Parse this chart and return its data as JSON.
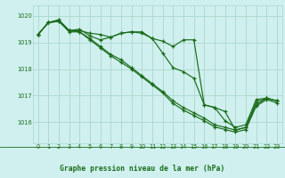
{
  "title": "Graphe pression niveau de la mer (hPa)",
  "bg_color": "#cff0ee",
  "line_color": "#1a6b1a",
  "grid_color": "#aad8cc",
  "title_color": "#1a6b1a",
  "xlim": [
    -0.5,
    23.5
  ],
  "ylim": [
    1015.2,
    1020.4
  ],
  "yticks": [
    1016,
    1017,
    1018,
    1019,
    1020
  ],
  "xticks": [
    0,
    1,
    2,
    3,
    4,
    5,
    6,
    7,
    8,
    9,
    10,
    11,
    12,
    13,
    14,
    15,
    16,
    17,
    18,
    19,
    20,
    21,
    22,
    23
  ],
  "series": [
    [
      1019.3,
      1019.75,
      1019.85,
      1019.45,
      1019.45,
      1019.35,
      1019.3,
      1019.2,
      1019.35,
      1019.4,
      1019.35,
      1019.15,
      1019.05,
      1018.85,
      1019.1,
      1019.1,
      1016.65,
      1016.55,
      1016.05,
      1015.8,
      1015.9,
      1016.85,
      1016.9,
      1016.8
    ],
    [
      1019.3,
      1019.75,
      1019.85,
      1019.45,
      1019.5,
      1019.25,
      1019.1,
      1019.2,
      1019.35,
      1019.4,
      1019.4,
      1019.15,
      1018.6,
      1018.05,
      1017.9,
      1017.65,
      1016.65,
      1016.55,
      1016.4,
      1015.7,
      1015.8,
      1016.75,
      1016.9,
      1016.8
    ],
    [
      1019.3,
      1019.75,
      1019.8,
      1019.45,
      1019.4,
      1019.15,
      1018.85,
      1018.55,
      1018.35,
      1018.05,
      1017.75,
      1017.45,
      1017.15,
      1016.8,
      1016.55,
      1016.35,
      1016.15,
      1015.9,
      1015.8,
      1015.7,
      1015.8,
      1016.65,
      1016.9,
      1016.8
    ],
    [
      1019.3,
      1019.75,
      1019.8,
      1019.4,
      1019.4,
      1019.1,
      1018.8,
      1018.5,
      1018.25,
      1018.0,
      1017.7,
      1017.4,
      1017.1,
      1016.7,
      1016.45,
      1016.25,
      1016.05,
      1015.82,
      1015.72,
      1015.62,
      1015.72,
      1016.6,
      1016.85,
      1016.72
    ]
  ]
}
